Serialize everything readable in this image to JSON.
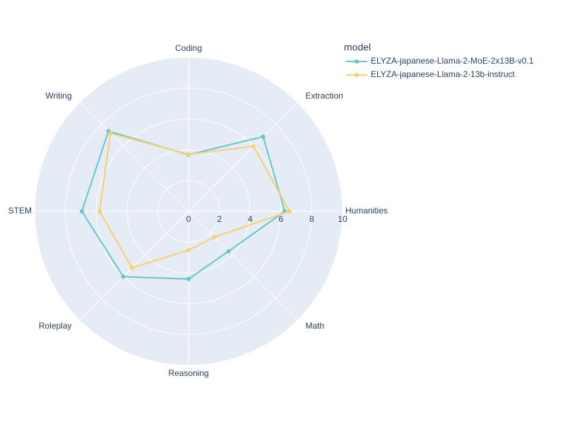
{
  "chart_data": {
    "type": "radar",
    "categories": [
      "Humanities",
      "Extraction",
      "Coding",
      "Writing",
      "STEM",
      "Roleplay",
      "Reasoning",
      "Math"
    ],
    "series": [
      {
        "name": "ELYZA-japanese-Llama-2-MoE-2x13B-v0.1",
        "color": "#66c5cc",
        "values": [
          6.25,
          6.85,
          3.67,
          7.36,
          6.93,
          6.0,
          4.4,
          3.67
        ]
      },
      {
        "name": "ELYZA-japanese-Llama-2-13b-instruct",
        "color": "#f6cf71",
        "values": [
          6.56,
          5.97,
          3.7,
          7.17,
          5.78,
          5.19,
          2.52,
          2.37
        ]
      }
    ],
    "rlim": [
      0,
      10
    ],
    "rticks": [
      0,
      2,
      4,
      6,
      8,
      10
    ],
    "legend_title": "model",
    "legend_position": "top-right",
    "grid": true
  }
}
